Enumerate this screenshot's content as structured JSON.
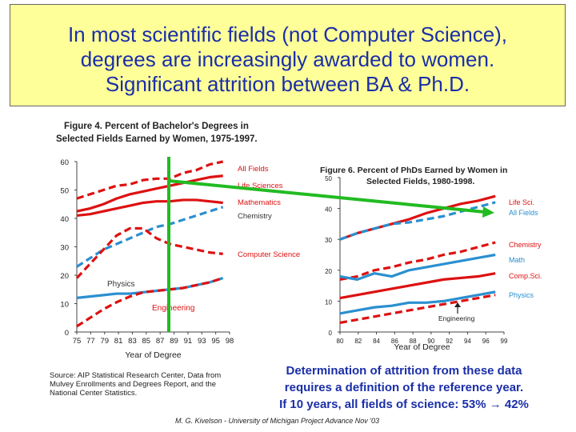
{
  "title": {
    "line1": "In most scientific fields (not Computer Science),",
    "line2": "degrees are increasingly awarded to women.",
    "line3": "Significant attrition between BA & Ph.D."
  },
  "footer": {
    "line1": "Determination of attrition from these data",
    "line2": "requires a definition of the reference year.",
    "line3": "If 10 years, all fields of science: 53% → 42%"
  },
  "source_text": "Source: AIP Statistical Research Center, Data from Mulvey Enrollments and Degrees Report, and the National Center Statistics.",
  "credit": "M. G. Kivelson - University of Michigan Project Advance Nov '03",
  "colors": {
    "red": "#dd1111",
    "blue": "#2a8fd0",
    "green": "#22bb22",
    "title_blue": "#1a2ea8"
  },
  "chart_data": [
    {
      "type": "line",
      "title_line1": "Figure 4.  Percent of Bachelor's Degrees in",
      "title_line2": "Selected Fields Earned by Women, 1975-1997.",
      "xlabel": "Year of Degree",
      "ylim": [
        0,
        60
      ],
      "xlim": [
        1975,
        1998
      ],
      "yticks": [
        "0",
        "10",
        "20",
        "30",
        "40",
        "50",
        "60"
      ],
      "xticks": [
        "75",
        "77",
        "79",
        "81",
        "83",
        "85",
        "87",
        "89",
        "91",
        "93",
        "95",
        "98"
      ],
      "series": [
        {
          "name": "All Fields",
          "color": "red",
          "dash": false,
          "x": [
            1975,
            1977,
            1979,
            1981,
            1983,
            1985,
            1987,
            1989,
            1991,
            1993,
            1995,
            1997
          ],
          "values": [
            42.5,
            43.5,
            45,
            47,
            48.5,
            49.5,
            50.5,
            51.5,
            52.5,
            53.5,
            54.5,
            55
          ]
        },
        {
          "name": "Life Sciences",
          "color": "red",
          "dash": true,
          "x": [
            1975,
            1977,
            1979,
            1981,
            1983,
            1985,
            1987,
            1989,
            1991,
            1993,
            1995,
            1997
          ],
          "values": [
            47,
            48.5,
            50,
            51.5,
            52,
            53.5,
            54,
            54,
            56,
            57,
            59,
            60
          ]
        },
        {
          "name": "Mathematics",
          "color": "red",
          "dash": false,
          "x": [
            1975,
            1977,
            1979,
            1981,
            1983,
            1985,
            1987,
            1989,
            1991,
            1993,
            1995,
            1997
          ],
          "values": [
            41,
            41.5,
            42.5,
            43.5,
            44.5,
            45.5,
            46,
            46,
            46.5,
            46.5,
            46,
            45.5
          ]
        },
        {
          "name": "Chemistry",
          "color": "blue",
          "dash": true,
          "x": [
            1975,
            1977,
            1979,
            1981,
            1983,
            1985,
            1987,
            1989,
            1991,
            1993,
            1995,
            1997
          ],
          "values": [
            23,
            26,
            29,
            31,
            33,
            35,
            37,
            38,
            39.5,
            41,
            42.5,
            44
          ]
        },
        {
          "name": "Computer Science",
          "color": "red",
          "dash": true,
          "x": [
            1975,
            1977,
            1979,
            1981,
            1983,
            1985,
            1987,
            1989,
            1991,
            1993,
            1995,
            1997
          ],
          "values": [
            19,
            24,
            29,
            34,
            36.5,
            36.5,
            33,
            31,
            30,
            29,
            28,
            27.5
          ]
        },
        {
          "name": "Physics",
          "color": "blue",
          "dash": false,
          "x": [
            1975,
            1977,
            1979,
            1981,
            1983,
            1985,
            1987,
            1989,
            1991,
            1993,
            1995,
            1997
          ],
          "values": [
            12,
            12.5,
            13,
            13.5,
            13.5,
            14,
            14.5,
            15,
            15.5,
            16.5,
            17.5,
            19
          ]
        },
        {
          "name": "Engineering",
          "color": "red",
          "dash": true,
          "x": [
            1975,
            1977,
            1979,
            1981,
            1983,
            1985,
            1987,
            1989,
            1991,
            1993,
            1995,
            1997
          ],
          "values": [
            2,
            5,
            8,
            10.5,
            12.5,
            14,
            14.5,
            15,
            15.5,
            16.5,
            17.5,
            19
          ]
        }
      ]
    },
    {
      "type": "line",
      "title_line1": "Figure 6.  Percent of PhDs Earned by Women in",
      "title_line2": "Selected Fields, 1980-1998.",
      "xlabel": "Year of Degree",
      "ylim": [
        0,
        50
      ],
      "xlim": [
        1980,
        1999
      ],
      "yticks": [
        "0",
        "10",
        "20",
        "30",
        "40",
        "50"
      ],
      "xticks": [
        "80",
        "82",
        "84",
        "86",
        "88",
        "90",
        "92",
        "94",
        "96",
        "99"
      ],
      "annotation": "Engineering",
      "series": [
        {
          "name": "Life Sci.",
          "color": "red",
          "dash": false,
          "x": [
            1980,
            1982,
            1984,
            1986,
            1988,
            1990,
            1992,
            1994,
            1996,
            1998
          ],
          "values": [
            30,
            32,
            33.5,
            35,
            36.5,
            38.5,
            40,
            41.5,
            42.5,
            44
          ]
        },
        {
          "name": "All Fields",
          "color": "blue",
          "dash": true,
          "x": [
            1980,
            1982,
            1984,
            1986,
            1988,
            1990,
            1992,
            1994,
            1996,
            1998
          ],
          "values": [
            30,
            32,
            33.5,
            35,
            35.5,
            36.5,
            37.5,
            39,
            40.5,
            42
          ]
        },
        {
          "name": "Chemistry",
          "color": "red",
          "dash": true,
          "x": [
            1980,
            1982,
            1984,
            1986,
            1988,
            1990,
            1992,
            1994,
            1996,
            1998
          ],
          "values": [
            17,
            18,
            20,
            21,
            22.5,
            23.5,
            25,
            26,
            27.5,
            29
          ]
        },
        {
          "name": "Math",
          "color": "blue",
          "dash": false,
          "x": [
            1980,
            1982,
            1984,
            1986,
            1988,
            1990,
            1992,
            1994,
            1996,
            1998
          ],
          "values": [
            18,
            17,
            19,
            18,
            20,
            21,
            22,
            23,
            24,
            25
          ]
        },
        {
          "name": "Comp.Sci.",
          "color": "red",
          "dash": false,
          "x": [
            1980,
            1982,
            1984,
            1986,
            1988,
            1990,
            1992,
            1994,
            1996,
            1998
          ],
          "values": [
            11,
            12,
            13,
            14,
            15,
            16,
            17,
            17.5,
            18,
            19
          ]
        },
        {
          "name": "Physics",
          "color": "blue",
          "dash": false,
          "x": [
            1980,
            1982,
            1984,
            1986,
            1988,
            1990,
            1992,
            1994,
            1996,
            1998
          ],
          "values": [
            6,
            7,
            8,
            8.5,
            9.5,
            9.5,
            10,
            11,
            12,
            13
          ]
        },
        {
          "name": "Engineering",
          "color": "red",
          "dash": true,
          "x": [
            1980,
            1982,
            1984,
            1986,
            1988,
            1990,
            1992,
            1994,
            1996,
            1998
          ],
          "values": [
            3,
            4,
            5,
            6,
            7,
            8,
            9,
            10,
            11,
            12
          ]
        }
      ]
    }
  ]
}
